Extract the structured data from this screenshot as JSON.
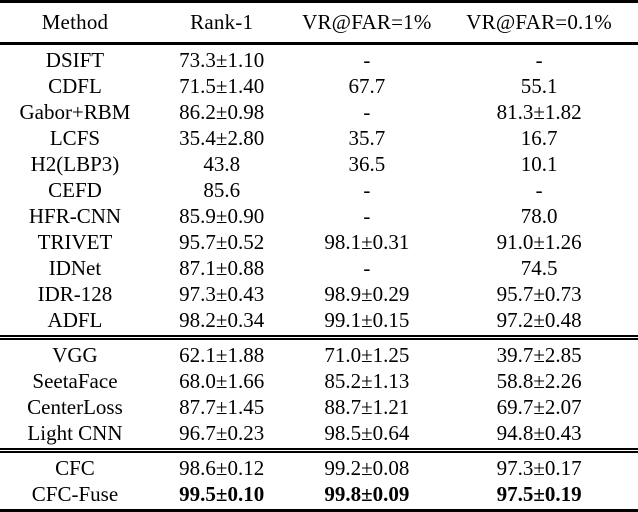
{
  "table": {
    "columns": [
      {
        "label": "Method"
      },
      {
        "label": "Rank-1"
      },
      {
        "label": "VR@FAR=1%"
      },
      {
        "label": "VR@FAR=0.1%"
      }
    ],
    "groups": [
      {
        "name": "traditional-and-early-methods",
        "rows": [
          {
            "method": "DSIFT",
            "values": [
              "73.3±1.10",
              "-",
              "-"
            ],
            "bold_values": false
          },
          {
            "method": "CDFL",
            "values": [
              "71.5±1.40",
              "67.7",
              "55.1"
            ],
            "bold_values": false
          },
          {
            "method": "Gabor+RBM",
            "values": [
              "86.2±0.98",
              "-",
              "81.3±1.82"
            ],
            "bold_values": false
          },
          {
            "method": "LCFS",
            "values": [
              "35.4±2.80",
              "35.7",
              "16.7"
            ],
            "bold_values": false
          },
          {
            "method": "H2(LBP3)",
            "values": [
              "43.8",
              "36.5",
              "10.1"
            ],
            "bold_values": false
          },
          {
            "method": "CEFD",
            "values": [
              "85.6",
              "-",
              "-"
            ],
            "bold_values": false
          },
          {
            "method": "HFR-CNN",
            "values": [
              "85.9±0.90",
              "-",
              "78.0"
            ],
            "bold_values": false
          },
          {
            "method": "TRIVET",
            "values": [
              "95.7±0.52",
              "98.1±0.31",
              "91.0±1.26"
            ],
            "bold_values": false
          },
          {
            "method": "IDNet",
            "values": [
              "87.1±0.88",
              "-",
              "74.5"
            ],
            "bold_values": false
          },
          {
            "method": "IDR-128",
            "values": [
              "97.3±0.43",
              "98.9±0.29",
              "95.7±0.73"
            ],
            "bold_values": false
          },
          {
            "method": "ADFL",
            "values": [
              "98.2±0.34",
              "99.1±0.15",
              "97.2±0.48"
            ],
            "bold_values": false
          }
        ]
      },
      {
        "name": "general-face-recognition-baselines",
        "rows": [
          {
            "method": "VGG",
            "values": [
              "62.1±1.88",
              "71.0±1.25",
              "39.7±2.85"
            ],
            "bold_values": false
          },
          {
            "method": "SeetaFace",
            "values": [
              "68.0±1.66",
              "85.2±1.13",
              "58.8±2.26"
            ],
            "bold_values": false
          },
          {
            "method": "CenterLoss",
            "values": [
              "87.7±1.45",
              "88.7±1.21",
              "69.7±2.07"
            ],
            "bold_values": false
          },
          {
            "method": "Light CNN",
            "values": [
              "96.7±0.23",
              "98.5±0.64",
              "94.8±0.43"
            ],
            "bold_values": false
          }
        ]
      },
      {
        "name": "proposed-methods",
        "rows": [
          {
            "method": "CFC",
            "values": [
              "98.6±0.12",
              "99.2±0.08",
              "97.3±0.17"
            ],
            "bold_values": false
          },
          {
            "method": "CFC-Fuse",
            "values": [
              "99.5±0.10",
              "99.8±0.09",
              "97.5±0.19"
            ],
            "bold_values": true
          }
        ]
      }
    ]
  }
}
